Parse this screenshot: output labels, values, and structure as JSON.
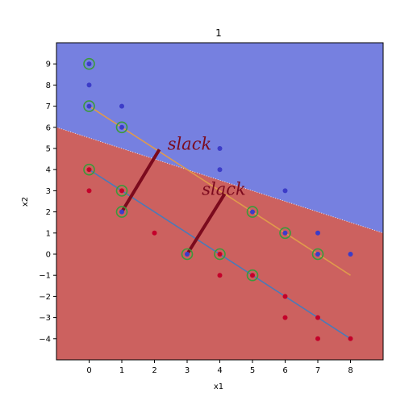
{
  "chart_data": {
    "type": "scatter",
    "title": "1",
    "xlabel": "x1",
    "ylabel": "x2",
    "xlim": [
      -1,
      9
    ],
    "ylim": [
      -5,
      10
    ],
    "xticks": [
      0,
      1,
      2,
      3,
      4,
      5,
      6,
      7,
      8
    ],
    "yticks": [
      9,
      8,
      7,
      6,
      5,
      4,
      3,
      2,
      1,
      0,
      -1,
      -2,
      -3,
      -4
    ],
    "ytick_labels": [
      "9",
      "8",
      "7",
      "6",
      "5",
      "4",
      "3",
      "2",
      "1",
      "0",
      "−1",
      "−2",
      "−3",
      "−4"
    ],
    "grid": false,
    "colors": {
      "region_positive": "#7680e0",
      "region_negative": "#cc615f",
      "point_positive": "#3c3cc8",
      "point_negative": "#c4002a",
      "support_ring": "#3a9a3a",
      "upper_margin": "#e09a4c",
      "lower_margin": "#4a7ab8",
      "slack": "#7b0a1d"
    },
    "decision_boundary": {
      "slope": -0.5,
      "intercept": 5.5
    },
    "margin_lines": [
      {
        "name": "upper",
        "from": [
          0,
          7
        ],
        "to": [
          8,
          -1
        ]
      },
      {
        "name": "lower",
        "from": [
          0,
          4
        ],
        "to": [
          8,
          -4
        ]
      }
    ],
    "points_positive": [
      [
        0,
        9
      ],
      [
        0,
        8
      ],
      [
        0,
        7
      ],
      [
        1,
        7
      ],
      [
        1,
        6
      ],
      [
        4,
        5
      ],
      [
        4,
        4
      ],
      [
        5,
        2
      ],
      [
        6,
        3
      ],
      [
        6,
        1
      ],
      [
        7,
        1
      ],
      [
        7,
        0
      ],
      [
        8,
        0
      ],
      [
        1,
        2
      ],
      [
        3,
        0
      ]
    ],
    "points_negative": [
      [
        0,
        4
      ],
      [
        0,
        3
      ],
      [
        1,
        3
      ],
      [
        2,
        1
      ],
      [
        4,
        0
      ],
      [
        4,
        -1
      ],
      [
        5,
        -1
      ],
      [
        6,
        -2
      ],
      [
        6,
        -3
      ],
      [
        7,
        -3
      ],
      [
        7,
        -4
      ],
      [
        8,
        -4
      ]
    ],
    "support_vectors": [
      [
        0,
        9
      ],
      [
        0,
        7
      ],
      [
        1,
        6
      ],
      [
        5,
        2
      ],
      [
        6,
        1
      ],
      [
        7,
        0
      ],
      [
        0,
        4
      ],
      [
        1,
        3
      ],
      [
        1,
        2
      ],
      [
        3,
        0
      ],
      [
        4,
        0
      ],
      [
        5,
        -1
      ]
    ],
    "slack_segments": [
      {
        "from": [
          1,
          2
        ],
        "to": [
          2.15,
          4.95
        ]
      },
      {
        "from": [
          3,
          0
        ],
        "to": [
          4.15,
          2.85
        ]
      }
    ],
    "annotations": [
      {
        "text": "slack",
        "x": 2.4,
        "y": 4.95
      },
      {
        "text": "slack",
        "x": 3.45,
        "y": 2.8
      }
    ]
  }
}
